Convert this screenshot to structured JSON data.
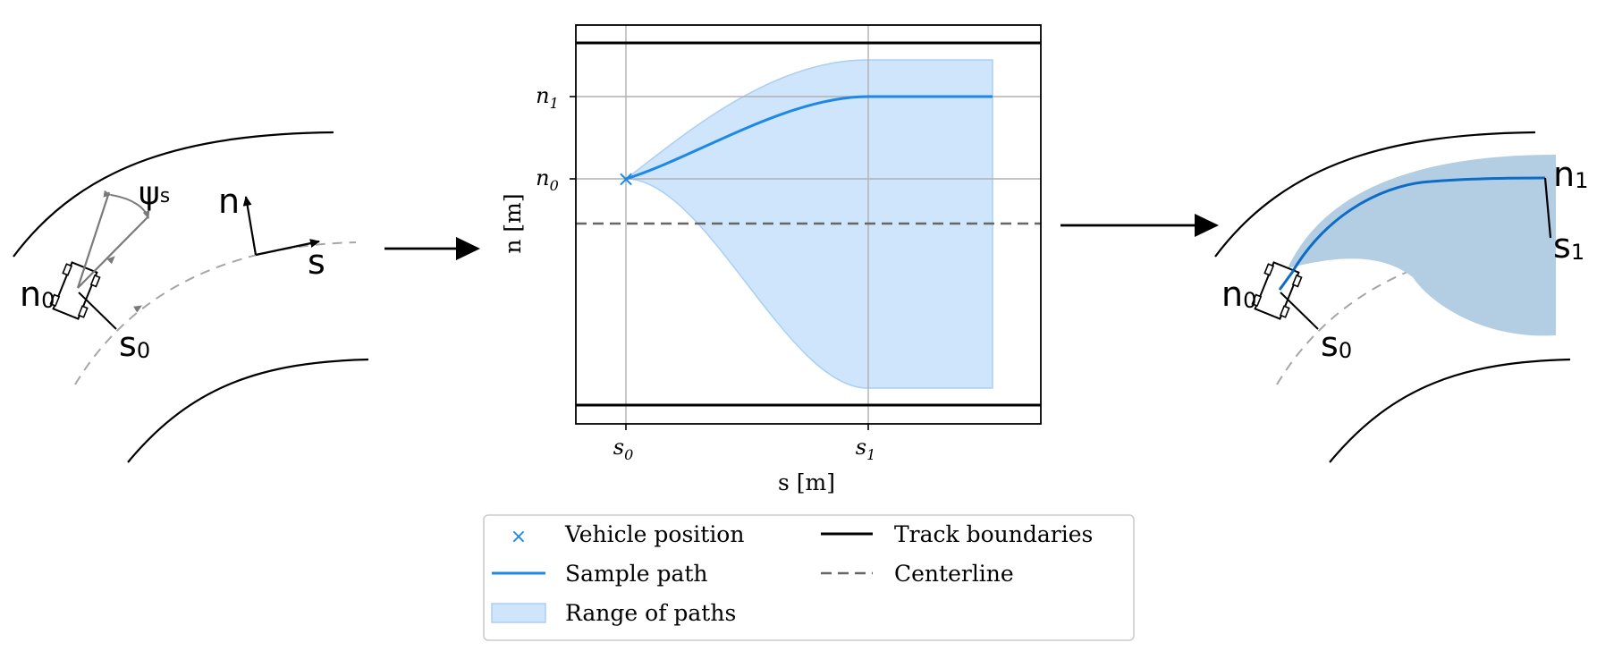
{
  "left_panel": {
    "angle_label": "ψ",
    "angle_sub": "s",
    "axis_n_label": "n",
    "axis_s_label": "s",
    "n0_label": "n",
    "n0_sub": "0",
    "s0_label": "s",
    "s0_sub": "0"
  },
  "right_panel": {
    "n0_label": "n",
    "n0_sub": "0",
    "s0_label": "s",
    "s0_sub": "0",
    "n1_label": "n",
    "n1_sub": "1",
    "s1_label": "s",
    "s1_sub": "1"
  },
  "plot": {
    "xlabel": "s [m]",
    "ylabel": "n [m]",
    "xticks": [
      {
        "main": "s",
        "sub": "0"
      },
      {
        "main": "s",
        "sub": "1"
      }
    ],
    "yticks": [
      {
        "main": "n",
        "sub": "1"
      },
      {
        "main": "n",
        "sub": "0"
      }
    ],
    "marker": "×"
  },
  "legend": {
    "items": [
      {
        "label": "Vehicle position"
      },
      {
        "label": "Track boundaries"
      },
      {
        "label": "Sample path"
      },
      {
        "label": "Centerline"
      },
      {
        "label": "Range of paths"
      }
    ]
  },
  "colors": {
    "track": "#000000",
    "centerline_plot": "#666666",
    "centerline_sketch": "#a6a6a6",
    "path": "#1e88e5",
    "range_fill": "#cfe5fb",
    "range_edge": "#a9cff5",
    "right_fill": "#b3cde3",
    "right_path": "#0d6cc7",
    "grid": "#b0b0b0"
  }
}
